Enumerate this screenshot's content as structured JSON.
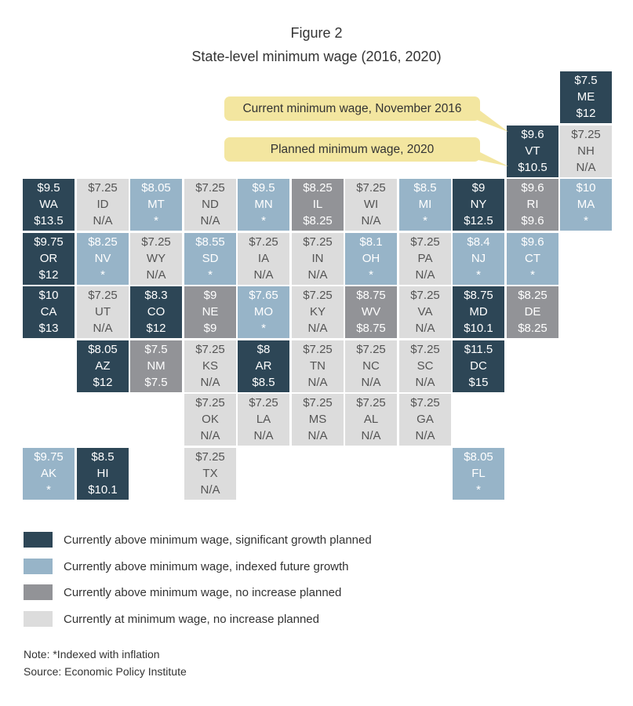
{
  "header": {
    "figure_label": "Figure 2",
    "title": "State-level minimum wage (2016, 2020)"
  },
  "callouts": {
    "current": "Current minimum wage, November 2016",
    "planned": "Planned minimum wage, 2020"
  },
  "colors": {
    "significant_growth": "#2d4656",
    "indexed_growth": "#97b4c8",
    "no_increase": "#929397",
    "at_minimum": "#dcdcdc",
    "callout": "#f3e6a0"
  },
  "legend": [
    {
      "category": "significant_growth",
      "label": "Currently above minimum wage, significant growth planned"
    },
    {
      "category": "indexed_growth",
      "label": "Currently above minimum wage, indexed future growth"
    },
    {
      "category": "no_increase",
      "label": "Currently above minimum wage, no increase planned"
    },
    {
      "category": "at_minimum",
      "label": "Currently at minimum wage, no increase planned"
    }
  ],
  "notes": {
    "note": "Note: *Indexed with inflation",
    "source": "Source: Economic Policy Institute"
  },
  "chart_data": {
    "type": "table",
    "tiles": [
      {
        "state": "ME",
        "current": "$7.5",
        "planned": "$12",
        "category": "significant_growth",
        "row": 0,
        "col": 10
      },
      {
        "state": "VT",
        "current": "$9.6",
        "planned": "$10.5",
        "category": "significant_growth",
        "row": 1,
        "col": 9
      },
      {
        "state": "NH",
        "current": "$7.25",
        "planned": "N/A",
        "category": "at_minimum",
        "row": 1,
        "col": 10
      },
      {
        "state": "WA",
        "current": "$9.5",
        "planned": "$13.5",
        "category": "significant_growth",
        "row": 2,
        "col": 0
      },
      {
        "state": "ID",
        "current": "$7.25",
        "planned": "N/A",
        "category": "at_minimum",
        "row": 2,
        "col": 1
      },
      {
        "state": "MT",
        "current": "$8.05",
        "planned": "*",
        "category": "indexed_growth",
        "row": 2,
        "col": 2
      },
      {
        "state": "ND",
        "current": "$7.25",
        "planned": "N/A",
        "category": "at_minimum",
        "row": 2,
        "col": 3
      },
      {
        "state": "MN",
        "current": "$9.5",
        "planned": "*",
        "category": "indexed_growth",
        "row": 2,
        "col": 4
      },
      {
        "state": "IL",
        "current": "$8.25",
        "planned": "$8.25",
        "category": "no_increase",
        "row": 2,
        "col": 5
      },
      {
        "state": "WI",
        "current": "$7.25",
        "planned": "N/A",
        "category": "at_minimum",
        "row": 2,
        "col": 6
      },
      {
        "state": "MI",
        "current": "$8.5",
        "planned": "*",
        "category": "indexed_growth",
        "row": 2,
        "col": 7
      },
      {
        "state": "NY",
        "current": "$9",
        "planned": "$12.5",
        "category": "significant_growth",
        "row": 2,
        "col": 8
      },
      {
        "state": "RI",
        "current": "$9.6",
        "planned": "$9.6",
        "category": "no_increase",
        "row": 2,
        "col": 9
      },
      {
        "state": "MA",
        "current": "$10",
        "planned": "*",
        "category": "indexed_growth",
        "row": 2,
        "col": 10
      },
      {
        "state": "OR",
        "current": "$9.75",
        "planned": "$12",
        "category": "significant_growth",
        "row": 3,
        "col": 0
      },
      {
        "state": "NV",
        "current": "$8.25",
        "planned": "*",
        "category": "indexed_growth",
        "row": 3,
        "col": 1
      },
      {
        "state": "WY",
        "current": "$7.25",
        "planned": "N/A",
        "category": "at_minimum",
        "row": 3,
        "col": 2
      },
      {
        "state": "SD",
        "current": "$8.55",
        "planned": "*",
        "category": "indexed_growth",
        "row": 3,
        "col": 3
      },
      {
        "state": "IA",
        "current": "$7.25",
        "planned": "N/A",
        "category": "at_minimum",
        "row": 3,
        "col": 4
      },
      {
        "state": "IN",
        "current": "$7.25",
        "planned": "N/A",
        "category": "at_minimum",
        "row": 3,
        "col": 5
      },
      {
        "state": "OH",
        "current": "$8.1",
        "planned": "*",
        "category": "indexed_growth",
        "row": 3,
        "col": 6
      },
      {
        "state": "PA",
        "current": "$7.25",
        "planned": "N/A",
        "category": "at_minimum",
        "row": 3,
        "col": 7
      },
      {
        "state": "NJ",
        "current": "$8.4",
        "planned": "*",
        "category": "indexed_growth",
        "row": 3,
        "col": 8
      },
      {
        "state": "CT",
        "current": "$9.6",
        "planned": "*",
        "category": "indexed_growth",
        "row": 3,
        "col": 9
      },
      {
        "state": "CA",
        "current": "$10",
        "planned": "$13",
        "category": "significant_growth",
        "row": 4,
        "col": 0
      },
      {
        "state": "UT",
        "current": "$7.25",
        "planned": "N/A",
        "category": "at_minimum",
        "row": 4,
        "col": 1
      },
      {
        "state": "CO",
        "current": "$8.3",
        "planned": "$12",
        "category": "significant_growth",
        "row": 4,
        "col": 2
      },
      {
        "state": "NE",
        "current": "$9",
        "planned": "$9",
        "category": "no_increase",
        "row": 4,
        "col": 3
      },
      {
        "state": "MO",
        "current": "$7.65",
        "planned": "*",
        "category": "indexed_growth",
        "row": 4,
        "col": 4
      },
      {
        "state": "KY",
        "current": "$7.25",
        "planned": "N/A",
        "category": "at_minimum",
        "row": 4,
        "col": 5
      },
      {
        "state": "WV",
        "current": "$8.75",
        "planned": "$8.75",
        "category": "no_increase",
        "row": 4,
        "col": 6
      },
      {
        "state": "VA",
        "current": "$7.25",
        "planned": "N/A",
        "category": "at_minimum",
        "row": 4,
        "col": 7
      },
      {
        "state": "MD",
        "current": "$8.75",
        "planned": "$10.1",
        "category": "significant_growth",
        "row": 4,
        "col": 8
      },
      {
        "state": "DE",
        "current": "$8.25",
        "planned": "$8.25",
        "category": "no_increase",
        "row": 4,
        "col": 9
      },
      {
        "state": "AZ",
        "current": "$8.05",
        "planned": "$12",
        "category": "significant_growth",
        "row": 5,
        "col": 1
      },
      {
        "state": "NM",
        "current": "$7.5",
        "planned": "$7.5",
        "category": "no_increase",
        "row": 5,
        "col": 2
      },
      {
        "state": "KS",
        "current": "$7.25",
        "planned": "N/A",
        "category": "at_minimum",
        "row": 5,
        "col": 3
      },
      {
        "state": "AR",
        "current": "$8",
        "planned": "$8.5",
        "category": "significant_growth",
        "row": 5,
        "col": 4
      },
      {
        "state": "TN",
        "current": "$7.25",
        "planned": "N/A",
        "category": "at_minimum",
        "row": 5,
        "col": 5
      },
      {
        "state": "NC",
        "current": "$7.25",
        "planned": "N/A",
        "category": "at_minimum",
        "row": 5,
        "col": 6
      },
      {
        "state": "SC",
        "current": "$7.25",
        "planned": "N/A",
        "category": "at_minimum",
        "row": 5,
        "col": 7
      },
      {
        "state": "DC",
        "current": "$11.5",
        "planned": "$15",
        "category": "significant_growth",
        "row": 5,
        "col": 8
      },
      {
        "state": "OK",
        "current": "$7.25",
        "planned": "N/A",
        "category": "at_minimum",
        "row": 6,
        "col": 3
      },
      {
        "state": "LA",
        "current": "$7.25",
        "planned": "N/A",
        "category": "at_minimum",
        "row": 6,
        "col": 4
      },
      {
        "state": "MS",
        "current": "$7.25",
        "planned": "N/A",
        "category": "at_minimum",
        "row": 6,
        "col": 5
      },
      {
        "state": "AL",
        "current": "$7.25",
        "planned": "N/A",
        "category": "at_minimum",
        "row": 6,
        "col": 6
      },
      {
        "state": "GA",
        "current": "$7.25",
        "planned": "N/A",
        "category": "at_minimum",
        "row": 6,
        "col": 7
      },
      {
        "state": "AK",
        "current": "$9.75",
        "planned": "*",
        "category": "indexed_growth",
        "row": 7,
        "col": 0
      },
      {
        "state": "HI",
        "current": "$8.5",
        "planned": "$10.1",
        "category": "significant_growth",
        "row": 7,
        "col": 1
      },
      {
        "state": "TX",
        "current": "$7.25",
        "planned": "N/A",
        "category": "at_minimum",
        "row": 7,
        "col": 3
      },
      {
        "state": "FL",
        "current": "$8.05",
        "planned": "*",
        "category": "indexed_growth",
        "row": 7,
        "col": 8
      }
    ]
  }
}
